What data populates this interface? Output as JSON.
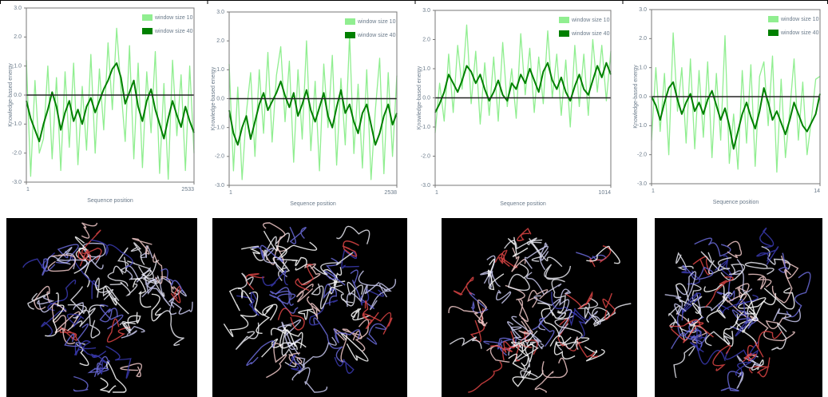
{
  "chart_data": [
    {
      "type": "line",
      "xlabel": "Sequence position",
      "ylabel": "Knowledge-based energy",
      "xlim": [
        1,
        2533
      ],
      "xticks": [
        1,
        2533
      ],
      "ylim": [
        -3,
        3
      ],
      "yticks": [
        {
          "value": 3,
          "label": "3.0"
        },
        {
          "value": 2,
          "label": "2.0"
        },
        {
          "value": 1,
          "label": "1.0"
        },
        {
          "value": 0,
          "label": "0.0"
        },
        {
          "value": -1,
          "label": "-1.0"
        },
        {
          "value": -2,
          "label": "-2.0"
        },
        {
          "value": -3,
          "label": "-3.0"
        }
      ],
      "hline": 0,
      "legend": "top-right",
      "series": [
        {
          "name": "window size 10",
          "color": "#90ee90",
          "values": [
            1.2,
            -2.8,
            0.5,
            -2.0,
            -1.5,
            1.0,
            -2.2,
            0.6,
            -2.6,
            0.8,
            -1.8,
            1.1,
            -2.4,
            0.3,
            -1.9,
            1.4,
            -2.0,
            0.9,
            -1.2,
            1.8,
            -0.5,
            2.3,
            0.2,
            -1.6,
            1.7,
            -2.2,
            1.1,
            -2.5,
            0.8,
            -1.3,
            1.5,
            -2.7,
            0.4,
            -2.9,
            1.2,
            -1.4,
            0.7,
            -2.6,
            1.0,
            -2.0
          ]
        },
        {
          "name": "window size 40",
          "color": "#008000",
          "values": [
            -0.2,
            -0.8,
            -1.2,
            -1.6,
            -1.0,
            -0.5,
            0.1,
            -0.4,
            -1.2,
            -0.6,
            -0.2,
            -0.9,
            -0.5,
            -1.0,
            -0.4,
            -0.1,
            -0.6,
            -0.2,
            0.2,
            0.5,
            0.9,
            1.1,
            0.6,
            -0.3,
            0.1,
            0.5,
            -0.4,
            -0.9,
            -0.2,
            0.2,
            -0.5,
            -1.0,
            -1.5,
            -0.8,
            -0.2,
            -0.7,
            -1.1,
            -0.4,
            -0.9,
            -1.3
          ]
        }
      ]
    },
    {
      "type": "line",
      "xlabel": "Sequence position",
      "ylabel": "Knowledge-based energy",
      "xlim": [
        1,
        2538
      ],
      "xticks": [
        1,
        2538
      ],
      "ylim": [
        -3,
        3
      ],
      "yticks": [
        {
          "value": 3,
          "label": "3.0"
        },
        {
          "value": 2,
          "label": "2.0"
        },
        {
          "value": 1,
          "label": "1.0"
        },
        {
          "value": 0,
          "label": "0.0"
        },
        {
          "value": -1,
          "label": "-1.0"
        },
        {
          "value": -2,
          "label": "-2.0"
        },
        {
          "value": -3,
          "label": "-3.0"
        }
      ],
      "hline": 0,
      "legend": "top-right",
      "series": [
        {
          "name": "window size 10",
          "color": "#90ee90",
          "values": [
            1.2,
            -2.5,
            0.4,
            -2.8,
            -0.5,
            0.9,
            -2.0,
            1.0,
            -1.2,
            1.6,
            -1.5,
            0.8,
            1.8,
            -0.8,
            1.3,
            -2.2,
            1.0,
            -1.4,
            2.0,
            -1.8,
            0.6,
            -2.5,
            1.2,
            -1.0,
            1.5,
            -2.3,
            0.7,
            -1.6,
            2.2,
            -1.9,
            0.5,
            -2.4,
            1.0,
            -2.8,
            -0.4,
            1.4,
            -2.6,
            0.9,
            -2.0,
            0.8
          ]
        },
        {
          "name": "window size 40",
          "color": "#008000",
          "values": [
            -0.4,
            -1.2,
            -1.6,
            -1.0,
            -0.6,
            -1.4,
            -0.8,
            -0.2,
            0.2,
            -0.4,
            -0.1,
            0.2,
            0.6,
            0.1,
            -0.3,
            0.2,
            -0.6,
            -0.2,
            0.3,
            -0.4,
            -0.8,
            -0.3,
            0.2,
            -0.6,
            -1.0,
            -0.3,
            0.3,
            -0.5,
            -0.2,
            -0.8,
            -1.2,
            -0.5,
            -0.2,
            -0.9,
            -1.6,
            -1.2,
            -0.6,
            -0.2,
            -0.9,
            -0.5
          ]
        }
      ]
    },
    {
      "type": "line",
      "xlabel": "Sequence position",
      "ylabel": "Knowledge-based energy",
      "xlim": [
        1,
        1014
      ],
      "xticks": [
        1,
        1014
      ],
      "ylim": [
        -3,
        3
      ],
      "yticks": [
        {
          "value": 3,
          "label": "3.0"
        },
        {
          "value": 2,
          "label": "2.0"
        },
        {
          "value": 1,
          "label": "1.0"
        },
        {
          "value": 0,
          "label": "0.0"
        },
        {
          "value": -1,
          "label": "-1.0"
        },
        {
          "value": -2,
          "label": "-2.0"
        },
        {
          "value": -3,
          "label": "-3.0"
        }
      ],
      "hline": 0,
      "legend": "top-right",
      "series": [
        {
          "name": "window size 10",
          "color": "#90ee90",
          "values": [
            -1.2,
            0.5,
            -0.8,
            1.5,
            -0.5,
            1.8,
            0.3,
            2.5,
            -0.2,
            1.6,
            -0.9,
            1.2,
            -0.6,
            1.4,
            -0.8,
            1.9,
            -0.3,
            1.0,
            -0.7,
            2.2,
            0.1,
            1.7,
            -0.5,
            1.4,
            -0.2,
            2.3,
            0.0,
            1.5,
            -0.6,
            1.3,
            -1.0,
            1.8,
            -0.3,
            1.5,
            -0.6,
            2.0,
            0.2,
            1.8,
            -0.1,
            1.6
          ]
        },
        {
          "name": "window size 40",
          "color": "#008000",
          "values": [
            -0.5,
            -0.2,
            0.2,
            0.8,
            0.5,
            0.2,
            0.6,
            1.1,
            0.9,
            0.5,
            0.8,
            0.3,
            -0.1,
            0.2,
            0.6,
            0.1,
            -0.1,
            0.5,
            0.3,
            0.8,
            0.5,
            1.0,
            0.6,
            0.2,
            0.9,
            1.2,
            0.6,
            0.3,
            0.7,
            0.2,
            -0.1,
            0.4,
            0.8,
            0.3,
            0.1,
            0.6,
            1.1,
            0.7,
            1.2,
            0.8
          ]
        }
      ]
    },
    {
      "type": "line",
      "xlabel": "Sequence position",
      "ylabel": "Knowledge-based energy",
      "xlim": [
        1,
        14
      ],
      "xticks": [
        1,
        14
      ],
      "ylim": [
        -3,
        3
      ],
      "yticks": [
        {
          "value": 3,
          "label": "3.0"
        },
        {
          "value": 2,
          "label": "2.0"
        },
        {
          "value": 1,
          "label": "1.0"
        },
        {
          "value": 0,
          "label": "0.0"
        },
        {
          "value": -1,
          "label": "-1.0"
        },
        {
          "value": -2,
          "label": "-2.0"
        },
        {
          "value": -3,
          "label": "-3.0"
        }
      ],
      "hline": 0,
      "legend": "top-right",
      "series": [
        {
          "name": "window size 10",
          "color": "#90ee90",
          "values": [
            -1.5,
            1.0,
            -1.2,
            0.8,
            -2.0,
            2.2,
            -0.5,
            1.0,
            -1.6,
            1.3,
            -1.8,
            0.9,
            -1.4,
            1.2,
            -2.1,
            0.8,
            -1.5,
            2.1,
            -2.3,
            -0.6,
            -2.5,
            0.9,
            -1.6,
            1.1,
            -2.4,
            0.7,
            1.2,
            -1.0,
            1.4,
            -2.6,
            0.6,
            -2.1,
            -0.5,
            1.3,
            -1.5,
            0.5,
            -2.0,
            -0.8,
            0.6,
            0.7
          ]
        },
        {
          "name": "window size 40",
          "color": "#008000",
          "values": [
            0.0,
            -0.3,
            -0.8,
            -0.2,
            0.3,
            0.5,
            -0.1,
            -0.6,
            -0.2,
            0.1,
            -0.5,
            -0.2,
            -0.6,
            -0.1,
            0.2,
            -0.3,
            -0.8,
            -0.4,
            -1.0,
            -1.8,
            -1.2,
            -0.6,
            -0.2,
            -0.7,
            -1.1,
            -0.5,
            0.3,
            -0.2,
            -0.8,
            -0.5,
            -0.9,
            -1.3,
            -0.8,
            -0.2,
            -0.6,
            -1.0,
            -1.2,
            -0.9,
            -0.6,
            0.1
          ]
        }
      ]
    }
  ]
}
